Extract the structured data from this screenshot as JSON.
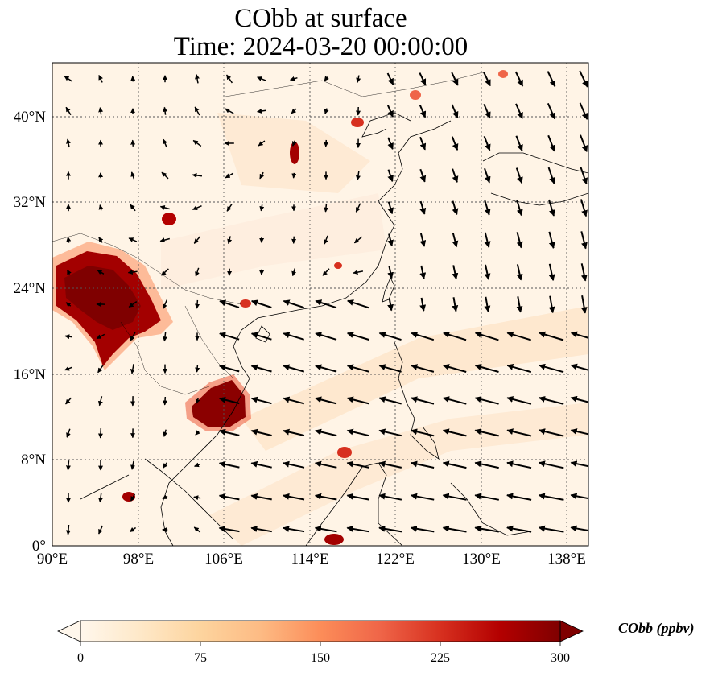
{
  "title": "CObb at surface",
  "subtitle": "Time: 2024-03-20 00:00:00",
  "map": {
    "variable": "CObb",
    "level": "surface",
    "extent": {
      "lon_min": 90,
      "lon_max": 140,
      "lat_min": 0,
      "lat_max": 45
    },
    "x_ticks": [
      "90°E",
      "98°E",
      "106°E",
      "114°E",
      "122°E",
      "130°E",
      "138°E"
    ],
    "y_ticks": [
      "0°",
      "8°N",
      "16°N",
      "24°N",
      "32°N",
      "40°N"
    ],
    "gridlines": true,
    "overlay": "wind vectors (arrows)",
    "colormap": "OrRd",
    "hotspots": [
      {
        "region": "Myanmar / Yunnan / northern Thailand-Laos",
        "lon": 96,
        "lat": 22,
        "level": "very high (>300 ppbv)"
      },
      {
        "region": "Cambodia",
        "lon": 105,
        "lat": 13,
        "level": "very high (>300 ppbv)"
      },
      {
        "region": "Shanxi / Hebei",
        "lon": 112.5,
        "lat": 36.5,
        "level": "high"
      },
      {
        "region": "Beijing",
        "lon": 117,
        "lat": 40,
        "level": "moderate"
      },
      {
        "region": "Sichuan basin",
        "lon": 101,
        "lat": 30.5,
        "level": "high"
      },
      {
        "region": "Borneo north coast",
        "lon": 116.5,
        "lat": 7,
        "level": "high"
      }
    ]
  },
  "colorbar": {
    "ticks": [
      "0",
      "75",
      "150",
      "225",
      "300"
    ],
    "label": "CObb (ppbv)",
    "min": 0,
    "max": 300,
    "extend": "both",
    "colors": [
      "#fff7ec",
      "#fee8c8",
      "#fdd49e",
      "#fdbb84",
      "#fc8d59",
      "#ef6548",
      "#d7301f",
      "#b30000",
      "#7f0000"
    ]
  }
}
